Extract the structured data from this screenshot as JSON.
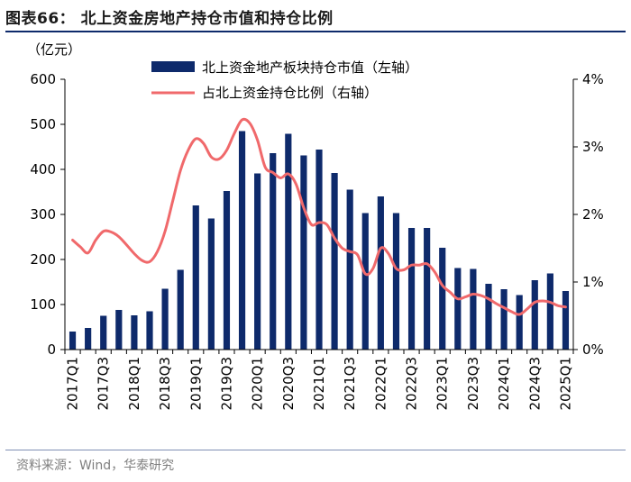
{
  "figure": {
    "title": "图表66：  北上资金房地产持仓市值和持仓比例",
    "source": "资料来源：Wind，华泰研究"
  },
  "chart_data": {
    "type": "bar+line",
    "title": "北上资金房地产持仓市值和持仓比例",
    "y_left_unit": "（亿元）",
    "y_left_lim": [
      0,
      600
    ],
    "y_left_ticks": [
      "0",
      "100",
      "200",
      "300",
      "400",
      "500",
      "600"
    ],
    "y_right_lim": [
      0,
      4
    ],
    "y_right_ticks": [
      "0%",
      "1%",
      "2%",
      "3%",
      "4%"
    ],
    "categories": [
      "2017Q1",
      "2017Q2",
      "2017Q3",
      "2017Q4",
      "2018Q1",
      "2018Q2",
      "2018Q3",
      "2018Q4",
      "2019Q1",
      "2019Q2",
      "2019Q3",
      "2019Q4",
      "2020Q1",
      "2020Q2",
      "2020Q3",
      "2020Q4",
      "2021Q1",
      "2021Q2",
      "2021Q3",
      "2021Q4",
      "2022Q1",
      "2022Q2",
      "2022Q3",
      "2022Q4",
      "2023Q1",
      "2023Q2",
      "2023Q3",
      "2023Q4",
      "2024Q1",
      "2024Q2",
      "2024Q3",
      "2024Q4",
      "2025Q1"
    ],
    "x_tick_labels": [
      "2017Q1",
      "2017Q3",
      "2018Q1",
      "2018Q3",
      "2019Q1",
      "2019Q3",
      "2020Q1",
      "2020Q3",
      "2021Q1",
      "2021Q3",
      "2022Q1",
      "2022Q3",
      "2023Q1",
      "2023Q3",
      "2024Q1",
      "2024Q3",
      "2025Q1"
    ],
    "series": [
      {
        "name": "北上资金地产板块持仓市值（左轴）",
        "type": "bar",
        "axis": "left",
        "color": "#0e2a6b",
        "values": [
          40,
          48,
          75,
          88,
          76,
          85,
          135,
          177,
          320,
          291,
          352,
          485,
          391,
          436,
          479,
          431,
          444,
          392,
          355,
          303,
          340,
          303,
          270,
          270,
          226,
          181,
          179,
          146,
          134,
          121,
          154,
          169,
          130
        ]
      },
      {
        "name": "占北上资金持仓比例（右轴）",
        "type": "line",
        "axis": "right",
        "color": "#f0696b",
        "points": [
          [
            0,
            1.62
          ],
          [
            0.5,
            1.52
          ],
          [
            1,
            1.43
          ],
          [
            1.5,
            1.62
          ],
          [
            2,
            1.75
          ],
          [
            2.5,
            1.74
          ],
          [
            3,
            1.67
          ],
          [
            3.5,
            1.55
          ],
          [
            4,
            1.42
          ],
          [
            4.5,
            1.32
          ],
          [
            5,
            1.3
          ],
          [
            5.5,
            1.45
          ],
          [
            6,
            1.75
          ],
          [
            6.5,
            2.2
          ],
          [
            7,
            2.65
          ],
          [
            7.5,
            2.95
          ],
          [
            8,
            3.12
          ],
          [
            8.5,
            3.05
          ],
          [
            9,
            2.85
          ],
          [
            9.5,
            2.82
          ],
          [
            10,
            2.95
          ],
          [
            10.5,
            3.2
          ],
          [
            11,
            3.4
          ],
          [
            11.5,
            3.35
          ],
          [
            12,
            3.1
          ],
          [
            12.5,
            2.7
          ],
          [
            13,
            2.62
          ],
          [
            13.5,
            2.54
          ],
          [
            14,
            2.6
          ],
          [
            14.5,
            2.45
          ],
          [
            15,
            2.1
          ],
          [
            15.5,
            1.85
          ],
          [
            16,
            1.88
          ],
          [
            16.5,
            1.85
          ],
          [
            17,
            1.65
          ],
          [
            17.5,
            1.5
          ],
          [
            18,
            1.45
          ],
          [
            18.5,
            1.4
          ],
          [
            19,
            1.12
          ],
          [
            19.5,
            1.2
          ],
          [
            20,
            1.5
          ],
          [
            20.5,
            1.42
          ],
          [
            21,
            1.2
          ],
          [
            21.5,
            1.18
          ],
          [
            22,
            1.25
          ],
          [
            22.5,
            1.25
          ],
          [
            23,
            1.27
          ],
          [
            23.5,
            1.15
          ],
          [
            24,
            0.95
          ],
          [
            24.5,
            0.85
          ],
          [
            25,
            0.75
          ],
          [
            25.5,
            0.78
          ],
          [
            26,
            0.82
          ],
          [
            26.5,
            0.8
          ],
          [
            27,
            0.75
          ],
          [
            27.5,
            0.68
          ],
          [
            28,
            0.62
          ],
          [
            28.5,
            0.56
          ],
          [
            29,
            0.52
          ],
          [
            29.5,
            0.6
          ],
          [
            30,
            0.7
          ],
          [
            30.5,
            0.72
          ],
          [
            31,
            0.7
          ],
          [
            31.5,
            0.65
          ],
          [
            32,
            0.63
          ]
        ]
      }
    ]
  }
}
